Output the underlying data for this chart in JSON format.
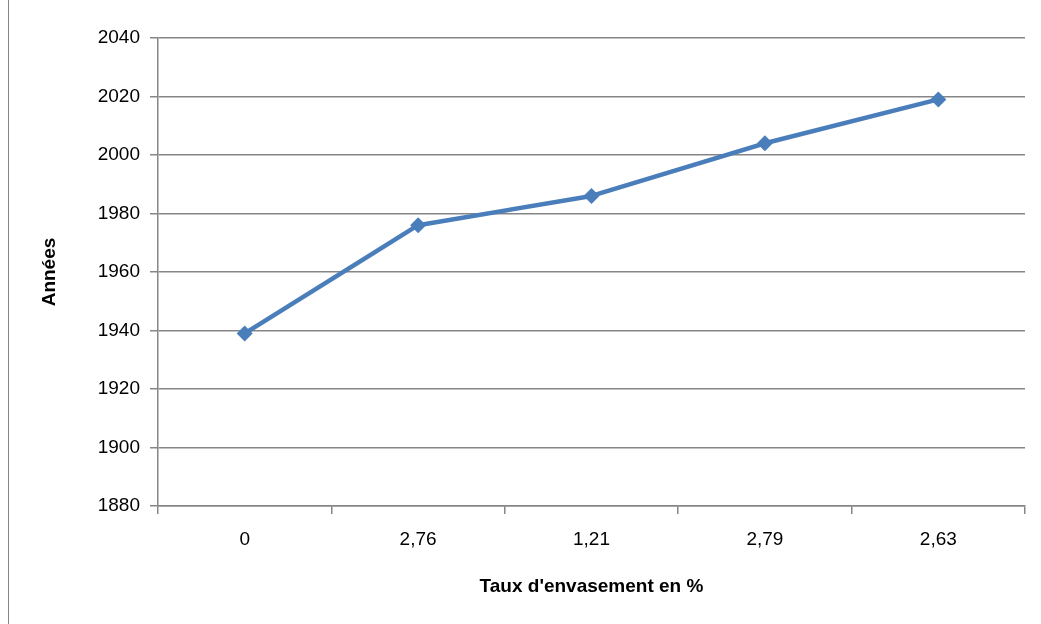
{
  "chart_data": {
    "type": "line",
    "xlabel": "Taux d'envasement en %",
    "ylabel": "Années",
    "categories": [
      "0",
      "2,76",
      "1,21",
      "2,79",
      "2,63"
    ],
    "series": [
      {
        "color": "#4a7ebb",
        "values": [
          1939,
          1976,
          1986,
          2004,
          2019
        ]
      }
    ],
    "ylim": [
      1880,
      2040
    ],
    "yticks": [
      1880,
      1900,
      1920,
      1940,
      1960,
      1980,
      2000,
      2020,
      2040
    ],
    "grid": "y",
    "marker": "diamond",
    "line_style": "solid"
  }
}
